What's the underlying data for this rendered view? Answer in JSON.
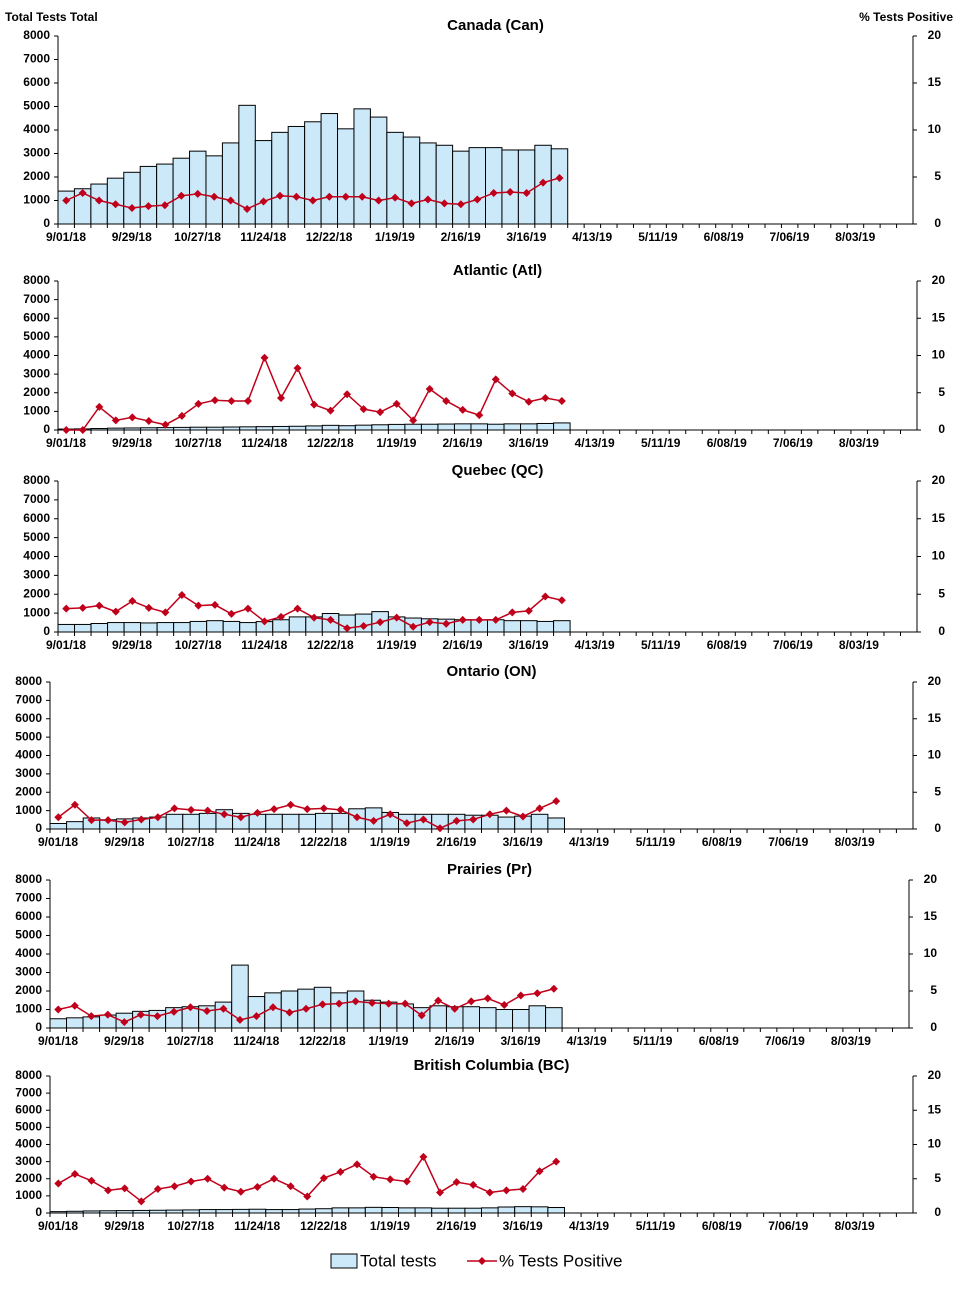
{
  "chart_data": [
    {
      "type": "bar_line",
      "title": "Canada (Can)",
      "ylabel": "Total Tests Total",
      "y2label": "% Tests Positive",
      "categories": [
        "9/01/18",
        null,
        null,
        null,
        "9/29/18",
        null,
        null,
        null,
        "10/27/18",
        null,
        null,
        null,
        "11/24/18",
        null,
        null,
        null,
        "12/22/18",
        null,
        null,
        null,
        "1/19/19",
        null,
        null,
        null,
        "2/16/19",
        null,
        null,
        null,
        "3/16/19",
        null,
        null,
        null,
        "4/13/19",
        null,
        null,
        null,
        "5/11/19",
        null,
        null,
        null,
        "6/08/19",
        null,
        null,
        null,
        "7/06/19",
        null,
        null,
        null,
        "8/03/19",
        null,
        null,
        null
      ],
      "ylim": [
        0,
        8000
      ],
      "yticks": [
        0,
        1000,
        2000,
        3000,
        4000,
        5000,
        6000,
        7000,
        8000
      ],
      "y2lim": [
        0,
        20
      ],
      "y2ticks": [
        0,
        5,
        10,
        15,
        20
      ],
      "series": [
        {
          "name": "Total tests",
          "color": "#cce9f9",
          "values": [
            1400,
            1500,
            1700,
            1950,
            2200,
            2450,
            2550,
            2800,
            3100,
            2900,
            3450,
            5050,
            3550,
            3900,
            4150,
            4350,
            4700,
            4050,
            4900,
            4550,
            3900,
            3700,
            3450,
            3350,
            3100,
            3250,
            3250,
            3150,
            3150,
            3350,
            3200,
            null,
            null,
            null,
            null,
            null,
            null,
            null,
            null,
            null,
            null,
            null,
            null,
            null,
            null,
            null,
            null,
            null,
            null,
            null,
            null,
            null
          ]
        },
        {
          "name": "% Tests Positive",
          "color": "#c0001a",
          "axis": "y2",
          "values": [
            2.5,
            3.3,
            2.5,
            2.1,
            1.7,
            1.9,
            2.0,
            3.0,
            3.2,
            2.9,
            2.5,
            1.6,
            2.4,
            3.0,
            2.9,
            2.5,
            2.9,
            2.9,
            2.9,
            2.5,
            2.8,
            2.2,
            2.6,
            2.2,
            2.1,
            2.6,
            3.3,
            3.4,
            3.3,
            4.4,
            4.9,
            null,
            null,
            null,
            null,
            null,
            null,
            null,
            null,
            null,
            null,
            null,
            null,
            null,
            null,
            null,
            null,
            null,
            null,
            null,
            null,
            null
          ]
        }
      ]
    },
    {
      "type": "bar_line",
      "title": "Atlantic (Atl)",
      "categories": [
        "9/01/18",
        null,
        null,
        null,
        "9/29/18",
        null,
        null,
        null,
        "10/27/18",
        null,
        null,
        null,
        "11/24/18",
        null,
        null,
        null,
        "12/22/18",
        null,
        null,
        null,
        "1/19/19",
        null,
        null,
        null,
        "2/16/19",
        null,
        null,
        null,
        "3/16/19",
        null,
        null,
        null,
        "4/13/19",
        null,
        null,
        null,
        "5/11/19",
        null,
        null,
        null,
        "6/08/19",
        null,
        null,
        null,
        "7/06/19",
        null,
        null,
        null,
        "8/03/19",
        null,
        null,
        null
      ],
      "ylim": [
        0,
        8000
      ],
      "yticks": [
        0,
        1000,
        2000,
        3000,
        4000,
        5000,
        6000,
        7000,
        8000
      ],
      "y2lim": [
        0,
        20
      ],
      "y2ticks": [
        0,
        5,
        10,
        15,
        20
      ],
      "series": [
        {
          "color": "#cce9f9",
          "values": [
            50,
            60,
            80,
            100,
            110,
            120,
            130,
            140,
            150,
            150,
            160,
            170,
            180,
            190,
            200,
            220,
            250,
            230,
            260,
            280,
            300,
            310,
            310,
            320,
            330,
            330,
            310,
            330,
            330,
            350,
            380,
            null,
            null,
            null,
            null,
            null,
            null,
            null,
            null,
            null,
            null,
            null,
            null,
            null,
            null,
            null,
            null,
            null,
            null,
            null,
            null,
            null
          ]
        },
        {
          "color": "#c0001a",
          "axis": "y2",
          "values": [
            0,
            0,
            3.1,
            1.3,
            1.7,
            1.2,
            0.7,
            1.9,
            3.5,
            4.0,
            3.9,
            3.9,
            9.7,
            4.3,
            8.3,
            3.4,
            2.6,
            4.8,
            2.8,
            2.4,
            3.5,
            1.3,
            5.5,
            3.9,
            2.7,
            2.0,
            6.8,
            4.9,
            3.8,
            4.3,
            3.9,
            null,
            null,
            null,
            null,
            null,
            null,
            null,
            null,
            null,
            null,
            null,
            null,
            null,
            null,
            null,
            null,
            null,
            null,
            null,
            null,
            null
          ]
        }
      ]
    },
    {
      "type": "bar_line",
      "title": "Quebec (QC)",
      "categories": [
        "9/01/18",
        null,
        null,
        null,
        "9/29/18",
        null,
        null,
        null,
        "10/27/18",
        null,
        null,
        null,
        "11/24/18",
        null,
        null,
        null,
        "12/22/18",
        null,
        null,
        null,
        "1/19/19",
        null,
        null,
        null,
        "2/16/19",
        null,
        null,
        null,
        "3/16/19",
        null,
        null,
        null,
        "4/13/19",
        null,
        null,
        null,
        "5/11/19",
        null,
        null,
        null,
        "6/08/19",
        null,
        null,
        null,
        "7/06/19",
        null,
        null,
        null,
        "8/03/19",
        null,
        null,
        null
      ],
      "ylim": [
        0,
        8000
      ],
      "yticks": [
        0,
        1000,
        2000,
        3000,
        4000,
        5000,
        6000,
        7000,
        8000
      ],
      "y2lim": [
        0,
        20
      ],
      "y2ticks": [
        0,
        5,
        10,
        15,
        20
      ],
      "series": [
        {
          "color": "#cce9f9",
          "values": [
            400,
            400,
            450,
            500,
            500,
            480,
            500,
            500,
            560,
            600,
            560,
            500,
            550,
            650,
            800,
            800,
            980,
            900,
            950,
            1080,
            800,
            740,
            700,
            680,
            650,
            640,
            650,
            600,
            600,
            560,
            600,
            null,
            null,
            null,
            null,
            null,
            null,
            null,
            null,
            null,
            null,
            null,
            null,
            null,
            null,
            null,
            null,
            null,
            null,
            null,
            null,
            null
          ]
        },
        {
          "color": "#c0001a",
          "axis": "y2",
          "values": [
            3.1,
            3.2,
            3.5,
            2.7,
            4.1,
            3.2,
            2.6,
            4.9,
            3.5,
            3.6,
            2.4,
            3.1,
            1.4,
            2.0,
            3.1,
            1.9,
            1.6,
            0.5,
            0.8,
            1.3,
            1.9,
            0.7,
            1.3,
            1.1,
            1.6,
            1.6,
            1.6,
            2.6,
            2.8,
            4.7,
            4.2,
            null,
            null,
            null,
            null,
            null,
            null,
            null,
            null,
            null,
            null,
            null,
            null,
            null,
            null,
            null,
            null,
            null,
            null,
            null,
            null,
            null
          ]
        }
      ]
    },
    {
      "type": "bar_line",
      "title": "Ontario (ON)",
      "categories": [
        "9/01/18",
        null,
        null,
        null,
        "9/29/18",
        null,
        null,
        null,
        "10/27/18",
        null,
        null,
        null,
        "11/24/18",
        null,
        null,
        null,
        "12/22/18",
        null,
        null,
        null,
        "1/19/19",
        null,
        null,
        null,
        "2/16/19",
        null,
        null,
        null,
        "3/16/19",
        null,
        null,
        null,
        "4/13/19",
        null,
        null,
        null,
        "5/11/19",
        null,
        null,
        null,
        "6/08/19",
        null,
        null,
        null,
        "7/06/19",
        null,
        null,
        null,
        "8/03/19",
        null,
        null,
        null
      ],
      "ylim": [
        0,
        8000
      ],
      "yticks": [
        0,
        1000,
        2000,
        3000,
        4000,
        5000,
        6000,
        7000,
        8000
      ],
      "y2lim": [
        0,
        20
      ],
      "y2ticks": [
        0,
        5,
        10,
        15,
        20
      ],
      "series": [
        {
          "color": "#cce9f9",
          "values": [
            300,
            400,
            600,
            500,
            550,
            600,
            650,
            800,
            800,
            850,
            1050,
            850,
            800,
            800,
            800,
            800,
            850,
            850,
            1100,
            1150,
            900,
            800,
            800,
            800,
            800,
            750,
            750,
            650,
            700,
            800,
            600,
            null,
            null,
            null,
            null,
            null,
            null,
            null,
            null,
            null,
            null,
            null,
            null,
            null,
            null,
            null,
            null,
            null,
            null,
            null,
            null,
            null
          ]
        },
        {
          "color": "#c0001a",
          "axis": "y2",
          "values": [
            1.6,
            3.3,
            1.2,
            1.2,
            0.9,
            1.3,
            1.6,
            2.8,
            2.6,
            2.5,
            2.0,
            1.6,
            2.2,
            2.7,
            3.3,
            2.7,
            2.8,
            2.6,
            1.6,
            1.1,
            2.0,
            0.8,
            1.3,
            0.1,
            1.1,
            1.3,
            2.0,
            2.5,
            1.7,
            2.8,
            3.8,
            null,
            null,
            null,
            null,
            null,
            null,
            null,
            null,
            null,
            null,
            null,
            null,
            null,
            null,
            null,
            null,
            null,
            null,
            null,
            null,
            null
          ]
        }
      ]
    },
    {
      "type": "bar_line",
      "title": "Prairies (Pr)",
      "categories": [
        "9/01/18",
        null,
        null,
        null,
        "9/29/18",
        null,
        null,
        null,
        "10/27/18",
        null,
        null,
        null,
        "11/24/18",
        null,
        null,
        null,
        "12/22/18",
        null,
        null,
        null,
        "1/19/19",
        null,
        null,
        null,
        "2/16/19",
        null,
        null,
        null,
        "3/16/19",
        null,
        null,
        null,
        "4/13/19",
        null,
        null,
        null,
        "5/11/19",
        null,
        null,
        null,
        "6/08/19",
        null,
        null,
        null,
        "7/06/19",
        null,
        null,
        null,
        "8/03/19",
        null,
        null,
        null
      ],
      "ylim": [
        0,
        8000
      ],
      "yticks": [
        0,
        1000,
        2000,
        3000,
        4000,
        5000,
        6000,
        7000,
        8000
      ],
      "y2lim": [
        0,
        20
      ],
      "y2ticks": [
        0,
        5,
        10,
        15,
        20
      ],
      "series": [
        {
          "color": "#cce9f9",
          "values": [
            500,
            550,
            600,
            700,
            800,
            900,
            950,
            1100,
            1150,
            1200,
            1400,
            3400,
            1700,
            1900,
            2000,
            2100,
            2200,
            1900,
            2000,
            1500,
            1400,
            1300,
            1100,
            1200,
            1150,
            1150,
            1100,
            1000,
            1000,
            1200,
            1100,
            null,
            null,
            null,
            null,
            null,
            null,
            null,
            null,
            null,
            null,
            null,
            null,
            null,
            null,
            null,
            null,
            null,
            null,
            null,
            null,
            null
          ]
        },
        {
          "color": "#c0001a",
          "axis": "y2",
          "values": [
            2.5,
            3.0,
            1.6,
            1.8,
            0.8,
            1.8,
            1.6,
            2.2,
            2.8,
            2.3,
            2.6,
            1.1,
            1.6,
            2.8,
            2.1,
            2.6,
            3.2,
            3.3,
            3.6,
            3.4,
            3.3,
            3.3,
            1.7,
            3.7,
            2.6,
            3.6,
            4.0,
            3.1,
            4.4,
            4.7,
            5.3,
            null,
            null,
            null,
            null,
            null,
            null,
            null,
            null,
            null,
            null,
            null,
            null,
            null,
            null,
            null,
            null,
            null,
            null,
            null,
            null,
            null
          ]
        }
      ]
    },
    {
      "type": "bar_line",
      "title": "British Columbia (BC)",
      "categories": [
        "9/01/18",
        null,
        null,
        null,
        "9/29/18",
        null,
        null,
        null,
        "10/27/18",
        null,
        null,
        null,
        "11/24/18",
        null,
        null,
        null,
        "12/22/18",
        null,
        null,
        null,
        "1/19/19",
        null,
        null,
        null,
        "2/16/19",
        null,
        null,
        null,
        "3/16/19",
        null,
        null,
        null,
        "4/13/19",
        null,
        null,
        null,
        "5/11/19",
        null,
        null,
        null,
        "6/08/19",
        null,
        null,
        null,
        "7/06/19",
        null,
        null,
        null,
        "8/03/19",
        null,
        null,
        null
      ],
      "ylim": [
        0,
        8000
      ],
      "yticks": [
        0,
        1000,
        2000,
        3000,
        4000,
        5000,
        6000,
        7000,
        8000
      ],
      "y2lim": [
        0,
        20
      ],
      "y2ticks": [
        0,
        5,
        10,
        15,
        20
      ],
      "series": [
        {
          "color": "#cce9f9",
          "values": [
            80,
            100,
            120,
            130,
            140,
            150,
            160,
            170,
            180,
            200,
            200,
            210,
            220,
            200,
            200,
            230,
            250,
            300,
            300,
            330,
            320,
            300,
            300,
            280,
            280,
            280,
            300,
            350,
            370,
            360,
            320,
            null,
            null,
            null,
            null,
            null,
            null,
            null,
            null,
            null,
            null,
            null,
            null,
            null,
            null,
            null,
            null,
            null,
            null,
            null,
            null,
            null
          ]
        },
        {
          "color": "#c0001a",
          "axis": "y2",
          "values": [
            4.3,
            5.7,
            4.7,
            3.3,
            3.6,
            1.7,
            3.5,
            3.9,
            4.6,
            5.0,
            3.7,
            3.1,
            3.8,
            5.0,
            3.9,
            2.4,
            5.1,
            6.0,
            7.1,
            5.3,
            4.9,
            4.6,
            8.2,
            3.0,
            4.5,
            4.1,
            3.0,
            3.3,
            3.5,
            6.1,
            7.5,
            null,
            null,
            null,
            null,
            null,
            null,
            null,
            null,
            null,
            null,
            null,
            null,
            null,
            null,
            null,
            null,
            null,
            null,
            null,
            null,
            null
          ]
        }
      ]
    }
  ]
}
